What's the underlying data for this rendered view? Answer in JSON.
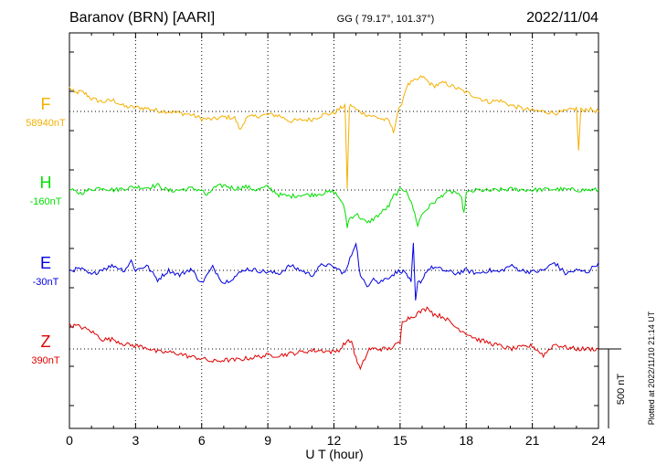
{
  "header": {
    "station": "Baranov (BRN)  [AARI]",
    "coords": "GG ( 79.17°, 101.37°)",
    "date": "2022/11/04"
  },
  "plotted_note": "Plotted at 2022/11/10 21:14 UT",
  "scale_label": "500 nT",
  "chart_data": {
    "type": "line",
    "xlabel": "U T (hour)",
    "xlim": [
      0,
      24
    ],
    "x_ticks": [
      0,
      3,
      6,
      9,
      12,
      15,
      18,
      21,
      24
    ],
    "x_tick_labels": [
      "0",
      "3",
      "6",
      "9",
      "12",
      "15",
      "18",
      "21",
      "24"
    ],
    "grid": true,
    "scale_bar_nT": 500,
    "series": [
      {
        "name": "F",
        "baseline_label": "58940nT",
        "color": "#f5b000",
        "x": [
          0,
          0.25,
          0.5,
          0.75,
          1,
          1.5,
          2,
          2.5,
          3,
          3.5,
          4,
          4.5,
          5,
          5.5,
          6,
          6.5,
          7,
          7.5,
          7.75,
          8,
          8.5,
          9,
          9.5,
          10,
          10.5,
          11,
          11.5,
          12,
          12.3,
          12.5,
          12.6,
          12.7,
          12.8,
          13,
          13.5,
          14,
          14.5,
          14.7,
          14.9,
          15,
          15.3,
          15.5,
          15.8,
          16,
          16.5,
          17,
          17.5,
          18,
          18.5,
          19,
          19.5,
          20,
          20.5,
          21,
          21.5,
          22,
          22.5,
          23,
          23.1,
          23.2,
          23.5,
          24
        ],
        "y": [
          150,
          115,
          125,
          110,
          80,
          60,
          70,
          30,
          25,
          20,
          5,
          0,
          -10,
          -20,
          -45,
          -50,
          -35,
          -40,
          -120,
          -40,
          -30,
          -20,
          -25,
          -60,
          -55,
          -50,
          -20,
          -10,
          20,
          40,
          -480,
          30,
          40,
          10,
          -20,
          -40,
          -60,
          -130,
          0,
          20,
          160,
          180,
          200,
          220,
          160,
          180,
          150,
          120,
          90,
          60,
          70,
          40,
          20,
          5,
          0,
          -10,
          0,
          20,
          -250,
          10,
          15,
          0
        ]
      },
      {
        "name": "H",
        "baseline_label": "-160nT",
        "color": "#00e000",
        "x": [
          0,
          0.5,
          1,
          1.5,
          2,
          2.5,
          3,
          3.5,
          4,
          4.5,
          5,
          5.5,
          6,
          6.25,
          6.5,
          7,
          7.5,
          8,
          8.5,
          9,
          9.5,
          10,
          10.5,
          11,
          11.5,
          12,
          12.3,
          12.5,
          12.6,
          12.7,
          13,
          13.5,
          14,
          14.5,
          14.7,
          15,
          15.3,
          15.6,
          15.8,
          16,
          16.5,
          16.8,
          17,
          17.5,
          17.8,
          17.9,
          18,
          18.5,
          19,
          20,
          21,
          22,
          23,
          24
        ],
        "y": [
          0,
          -20,
          5,
          15,
          0,
          10,
          20,
          15,
          30,
          -5,
          0,
          10,
          0,
          -40,
          10,
          30,
          10,
          20,
          0,
          20,
          -30,
          -40,
          -30,
          -30,
          -20,
          -10,
          -60,
          -130,
          -230,
          -180,
          -150,
          -210,
          -160,
          -100,
          -40,
          0,
          0,
          -120,
          -220,
          -150,
          -80,
          -50,
          -20,
          -10,
          -60,
          -150,
          -20,
          0,
          -5,
          5,
          0,
          5,
          0,
          0
        ]
      },
      {
        "name": "E",
        "baseline_label": "-30nT",
        "color": "#0000e0",
        "x": [
          0,
          0.5,
          1,
          1.5,
          2,
          2.5,
          2.8,
          3,
          3.5,
          4,
          4.5,
          5,
          5.5,
          6,
          6.5,
          7,
          7.5,
          8,
          8.5,
          9,
          9.5,
          10,
          10.5,
          11,
          11.5,
          12,
          12.5,
          12.8,
          13,
          13.2,
          13.5,
          13.8,
          14,
          14.5,
          15,
          15.3,
          15.5,
          15.6,
          15.7,
          15.8,
          16,
          16.2,
          16.5,
          17,
          17.5,
          18,
          18.5,
          19,
          19.5,
          20,
          20.5,
          21,
          21.5,
          22,
          22.5,
          23,
          23.5,
          24
        ],
        "y": [
          0,
          10,
          -30,
          10,
          30,
          0,
          60,
          0,
          30,
          -60,
          0,
          -30,
          10,
          -80,
          20,
          -80,
          -40,
          10,
          0,
          -10,
          -20,
          30,
          0,
          -30,
          40,
          20,
          -20,
          100,
          180,
          -40,
          -100,
          -40,
          -80,
          -40,
          0,
          -20,
          -80,
          160,
          -200,
          -80,
          -60,
          0,
          20,
          0,
          -20,
          0,
          -20,
          0,
          -10,
          30,
          0,
          -10,
          0,
          50,
          -20,
          0,
          -10,
          50
        ]
      },
      {
        "name": "Z",
        "baseline_label": "390nT",
        "color": "#e00000",
        "x": [
          0,
          0.5,
          1,
          1.5,
          2,
          2.5,
          3,
          3.5,
          4,
          4.5,
          5,
          5.5,
          6,
          6.5,
          7,
          7.5,
          8,
          8.5,
          9,
          9.5,
          10,
          10.5,
          11,
          11.5,
          12,
          12.3,
          12.5,
          12.8,
          13,
          13.2,
          13.4,
          13.6,
          14,
          14.5,
          15,
          15.1,
          15.5,
          16,
          16.3,
          16.5,
          17,
          17.5,
          18,
          18.5,
          19,
          19.5,
          20,
          20.5,
          21,
          21.5,
          22,
          22.5,
          23,
          23.5,
          24
        ],
        "y": [
          150,
          140,
          110,
          60,
          60,
          30,
          20,
          10,
          -20,
          -20,
          -30,
          -50,
          -60,
          -80,
          -70,
          -70,
          -60,
          -50,
          -40,
          -40,
          -30,
          -20,
          -10,
          -10,
          -20,
          0,
          40,
          50,
          -60,
          -130,
          -60,
          0,
          0,
          0,
          40,
          180,
          200,
          240,
          260,
          220,
          200,
          140,
          100,
          60,
          40,
          20,
          0,
          10,
          20,
          -40,
          30,
          10,
          0,
          0,
          0
        ]
      }
    ]
  }
}
